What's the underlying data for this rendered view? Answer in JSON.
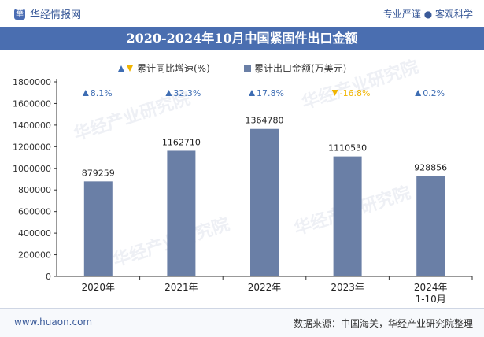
{
  "header": {
    "brand": "华经情报网",
    "tagline": "专业严谨 ● 客观科学"
  },
  "title": "2020-2024年10月中国紧固件出口金额",
  "legend": {
    "growth": "累计同比增速(%)",
    "amount": "累计出口金额(万美元)"
  },
  "footer": {
    "site": "www.huaon.com",
    "source": "数据来源：中国海关，华经产业研究院整理"
  },
  "watermark": "华经产业研究院",
  "colors": {
    "bar": "#6a7fa6",
    "up": "#3e6db3",
    "down": "#f0b400",
    "axis": "#333333"
  },
  "chart_data": {
    "type": "bar",
    "title": "2020-2024年10月中国紧固件出口金额",
    "categories": [
      "2020年",
      "2021年",
      "2022年",
      "2023年",
      "2024年\n1-10月"
    ],
    "series": [
      {
        "name": "累计出口金额(万美元)",
        "values": [
          879259,
          1162710,
          1364780,
          1110530,
          928856
        ]
      },
      {
        "name": "累计同比增速(%)",
        "values": [
          8.1,
          32.3,
          17.8,
          -16.8,
          0.2
        ]
      }
    ],
    "growth_labels": [
      "8.1%",
      "32.3%",
      "17.8%",
      "-16.8%",
      "0.2%"
    ],
    "value_labels": [
      "879259",
      "1162710",
      "1364780",
      "1110530",
      "928856"
    ],
    "category_labels": [
      "2020年",
      "2021年",
      "2022年",
      "2023年",
      "2024年"
    ],
    "category_sublabels": [
      "",
      "",
      "",
      "",
      "1-10月"
    ],
    "yticks": [
      0,
      200000,
      400000,
      600000,
      800000,
      1000000,
      1200000,
      1400000,
      1600000,
      1800000
    ],
    "ytick_labels": [
      "0",
      "200000",
      "400000",
      "600000",
      "800000",
      "1000000",
      "1200000",
      "1400000",
      "1600000",
      "1800000"
    ],
    "ylim": [
      0,
      1800000
    ],
    "xlabel": "",
    "ylabel": ""
  }
}
